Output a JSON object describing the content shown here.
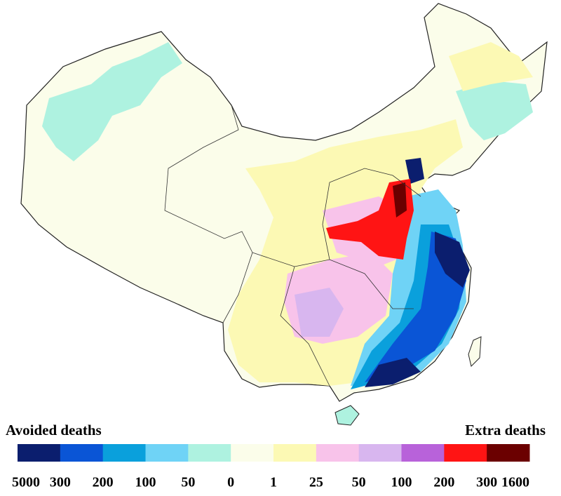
{
  "legend": {
    "left_title": "Avoided deaths",
    "right_title": "Extra deaths",
    "colors": [
      "#0b1e6e",
      "#0a55d6",
      "#0aa0dc",
      "#6fd3f6",
      "#aef2e0",
      "#fbfdea",
      "#fcf9b4",
      "#f8c3ea",
      "#d8b6ef",
      "#b862da",
      "#ff1414",
      "#6b0000"
    ],
    "labels": [
      5000,
      300,
      200,
      100,
      50,
      0,
      1,
      25,
      50,
      100,
      200,
      300,
      1600
    ]
  }
}
